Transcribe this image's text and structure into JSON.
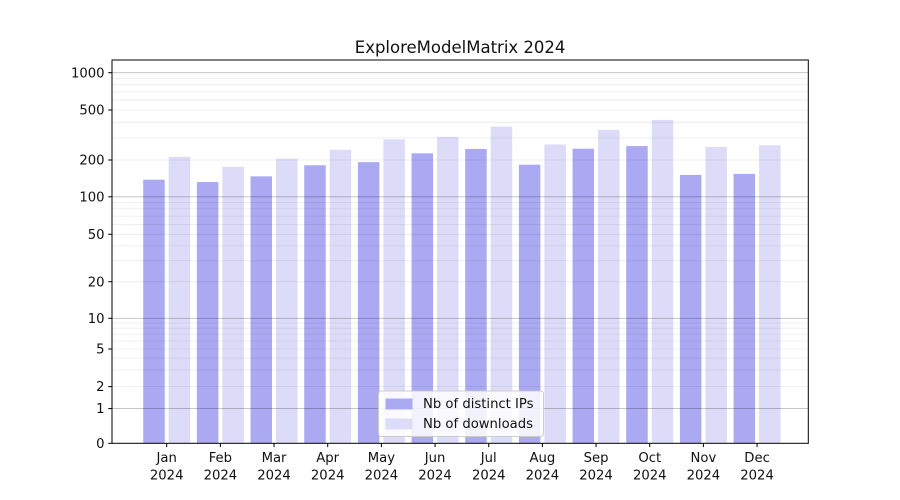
{
  "chart_data": {
    "type": "bar",
    "title": "ExploreModelMatrix 2024",
    "categories": [
      "Jan",
      "Feb",
      "Mar",
      "Apr",
      "May",
      "Jun",
      "Jul",
      "Aug",
      "Sep",
      "Oct",
      "Nov",
      "Dec"
    ],
    "x_tick_year": "2024",
    "series": [
      {
        "name": "Nb of distinct IPs",
        "color": "#aaa9f1",
        "values": [
          138,
          132,
          147,
          181,
          192,
          226,
          245,
          183,
          246,
          258,
          151,
          154
        ]
      },
      {
        "name": "Nb of downloads",
        "color": "#dcdcf8",
        "values": [
          212,
          176,
          205,
          241,
          292,
          306,
          369,
          266,
          348,
          417,
          254,
          262
        ]
      }
    ],
    "xlabel": "",
    "ylabel": "",
    "y_scale": "symlog",
    "y_ticks": [
      0,
      1,
      2,
      5,
      10,
      20,
      50,
      100,
      200,
      500,
      1000
    ],
    "ylim": [
      0,
      1300
    ],
    "grid": true,
    "legend_position": "lower-center",
    "colors": {
      "axis": "#000000",
      "bar_distinct_ips": "#aaa9f1",
      "bar_downloads": "#dcdcf8",
      "legend_border": "#cccccc"
    }
  }
}
